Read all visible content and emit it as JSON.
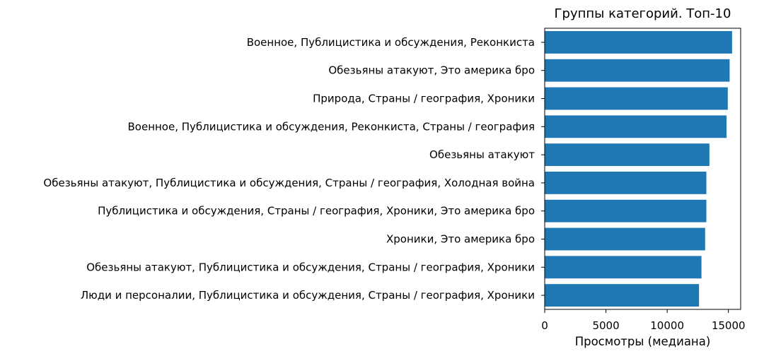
{
  "chart_data": {
    "type": "bar",
    "orientation": "horizontal",
    "title": "Группы категорий. Топ-10",
    "xlabel": "Просмотры (медиана)",
    "ylabel": "",
    "xlim": [
      0,
      16000
    ],
    "xticks": [
      0,
      5000,
      10000,
      15000
    ],
    "xtick_labels": [
      "0",
      "5000",
      "10000",
      "15000"
    ],
    "grid": false,
    "legend": "none",
    "bar_color": "#1f77b4",
    "categories": [
      "Военное, Публицистика и обсуждения, Реконкиста",
      "Обезьяны атакуют, Это америка бро",
      "Природа, Страны / география, Хроники",
      "Военное, Публицистика и обсуждения, Реконкиста, Страны / география",
      "Обезьяны атакуют",
      "Обезьяны атакуют, Публицистика и обсуждения, Страны / география, Холодная война",
      "Публицистика и обсуждения, Страны / география, Хроники, Это америка бро",
      "Хроники, Это америка бро",
      "Обезьяны атакуют, Публицистика и обсуждения, Страны / география, Хроники",
      "Люди и персоналии, Публицистика и обсуждения, Страны / география, Хроники"
    ],
    "values": [
      15300,
      15100,
      14950,
      14850,
      13450,
      13200,
      13200,
      13100,
      12800,
      12600
    ]
  }
}
